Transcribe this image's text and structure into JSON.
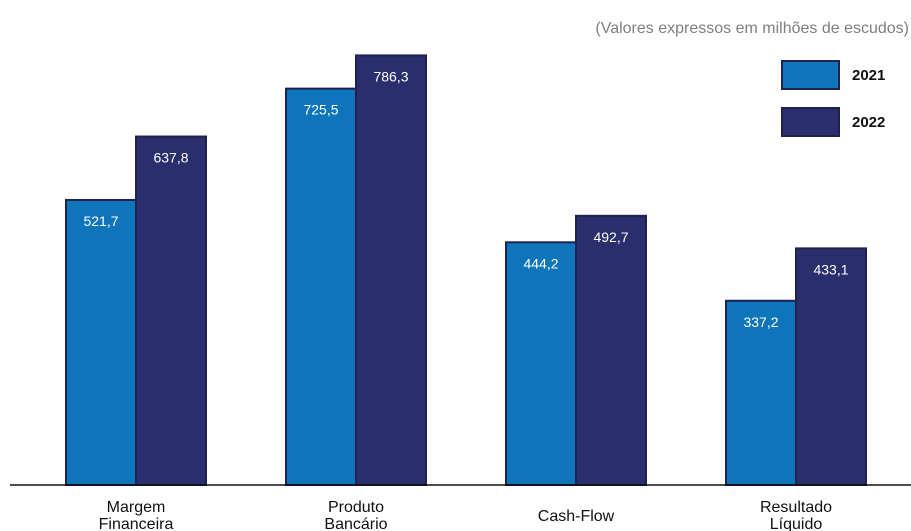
{
  "note": "(Valores expressos em milhões de escudos)",
  "chart_data": {
    "type": "bar",
    "categories": [
      [
        "Margem",
        "Financeira"
      ],
      [
        "Produto",
        "Bancário"
      ],
      [
        "Cash-Flow"
      ],
      [
        "Resultado",
        "Líquido"
      ]
    ],
    "series": [
      {
        "name": "2021",
        "color": "#0e75bb",
        "values": [
          521.7,
          725.5,
          444.2,
          337.2
        ],
        "labels": [
          "521,7",
          "725,5",
          "444,2",
          "337,2"
        ]
      },
      {
        "name": "2022",
        "color": "#2b2e6c",
        "values": [
          637.8,
          786.3,
          492.7,
          433.1
        ],
        "labels": [
          "637,8",
          "786,3",
          "492,7",
          "433,1"
        ]
      }
    ],
    "ylim": [
      0,
      820
    ],
    "legend": "top-right",
    "grid": false
  }
}
